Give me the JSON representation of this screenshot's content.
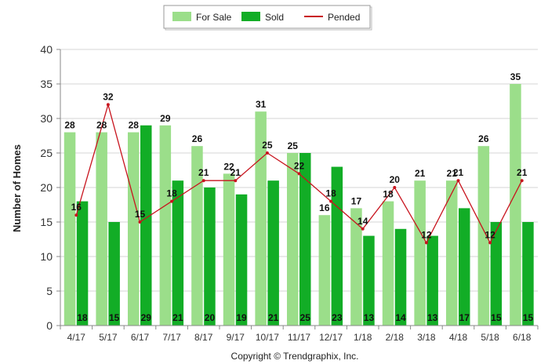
{
  "colors": {
    "for_sale": "#9bde8a",
    "sold": "#12ad26",
    "pended": "#c8141e",
    "grid": "#d6d6d6",
    "axis": "#888888"
  },
  "legend": {
    "items": [
      {
        "label": "For Sale",
        "kind": "bar",
        "color_key": "for_sale"
      },
      {
        "label": "Sold",
        "kind": "bar",
        "color_key": "sold"
      },
      {
        "label": "Pended",
        "kind": "line",
        "color_key": "pended"
      }
    ]
  },
  "footer": {
    "copyright": "Copyright © Trendgraphix, Inc."
  },
  "chart_data": {
    "type": "bar",
    "title": "",
    "xlabel": "",
    "ylabel": "Number of Homes",
    "ylim": [
      0,
      40
    ],
    "yticks": [
      0,
      5,
      10,
      15,
      20,
      25,
      30,
      35,
      40
    ],
    "grid": true,
    "legend_position": "top-center",
    "categories": [
      "4/17",
      "5/17",
      "6/17",
      "7/17",
      "8/17",
      "9/17",
      "10/17",
      "11/17",
      "12/17",
      "1/18",
      "2/18",
      "3/18",
      "4/18",
      "5/18",
      "6/18"
    ],
    "series": [
      {
        "name": "For Sale",
        "type": "bar",
        "values": [
          28,
          28,
          28,
          29,
          26,
          22,
          31,
          25,
          16,
          17,
          18,
          21,
          21,
          26,
          35
        ]
      },
      {
        "name": "Sold",
        "type": "bar",
        "values": [
          18,
          15,
          29,
          21,
          20,
          19,
          21,
          25,
          23,
          13,
          14,
          13,
          17,
          15,
          15
        ]
      },
      {
        "name": "Pended",
        "type": "line",
        "values": [
          16,
          32,
          15,
          18,
          21,
          21,
          25,
          22,
          18,
          14,
          20,
          12,
          21,
          12,
          21
        ]
      }
    ]
  }
}
